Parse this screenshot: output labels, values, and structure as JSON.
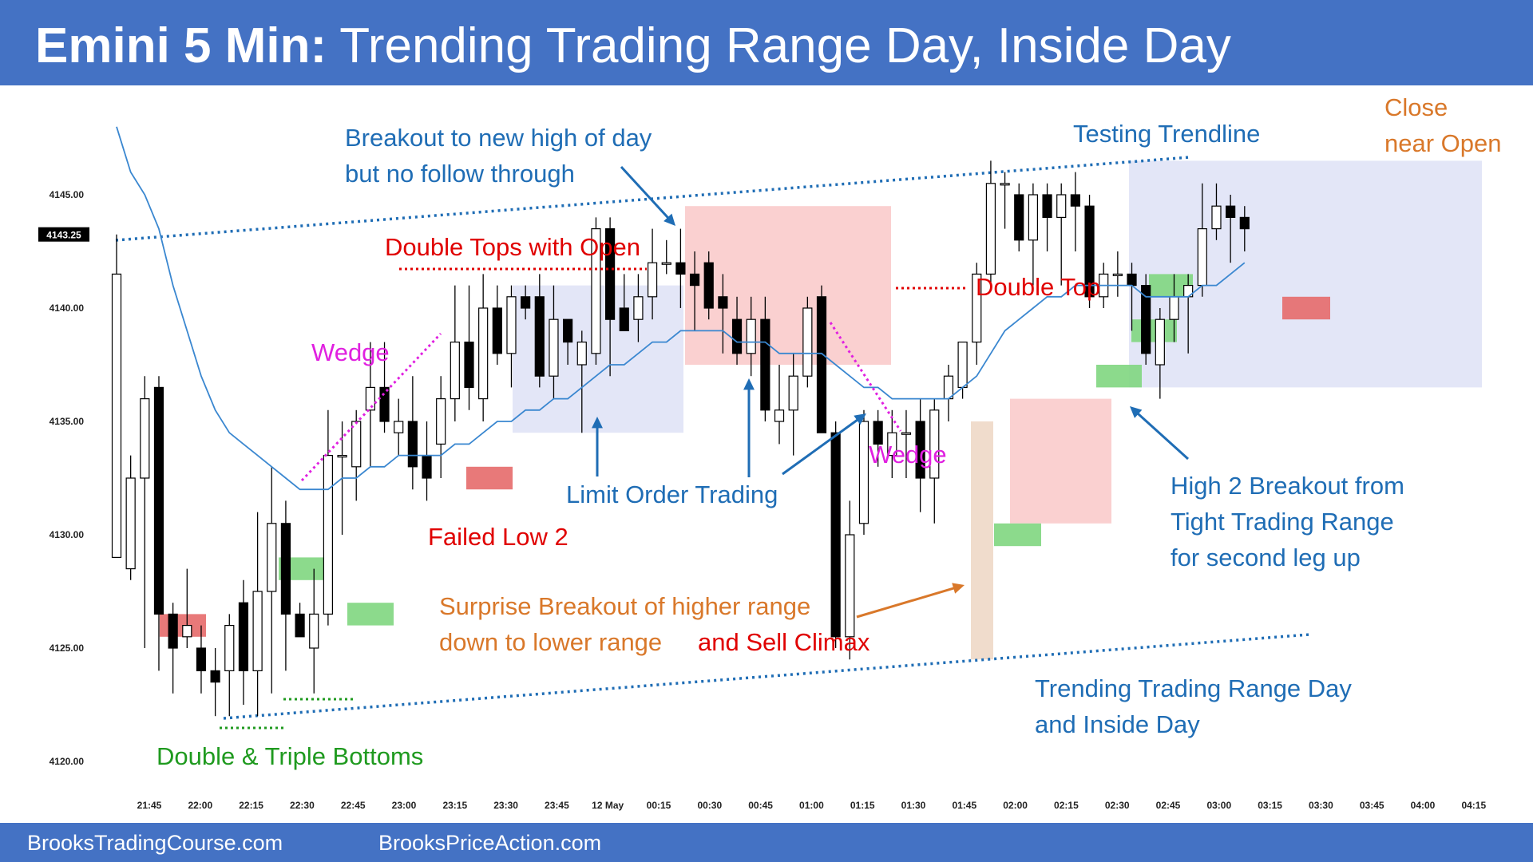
{
  "header": {
    "title_bold": "Emini 5 Min:",
    "title_rest": "Trending Trading Range Day, Inside Day"
  },
  "footer": {
    "left": "BrooksTradingCourse.com",
    "right": "BrooksPriceAction.com"
  },
  "colors": {
    "header_bg": "#4472c4",
    "bull_bar": "#ffffff",
    "bear_bar": "#000000",
    "ema": "#3a87d0",
    "blue_text": "#1f6db5",
    "red_text": "#e00000",
    "magenta": "#e020e0",
    "green_text": "#1f9a1f",
    "orange_text": "#d9782a",
    "range_blue": "#e3e6f7",
    "range_red": "#f9c8c8",
    "green_box": "#7fd67f",
    "red_box": "#e56a6a"
  },
  "chart_data": {
    "type": "candlestick",
    "title": "",
    "xlabel": "",
    "ylabel": "",
    "ylim": [
      4118.0,
      4149.0
    ],
    "y_ticks": [
      "4145.00",
      "4140.00",
      "4135.00",
      "4130.00",
      "4125.00",
      "4120.00"
    ],
    "y_tick_values": [
      4145,
      4140,
      4135,
      4130,
      4125,
      4120
    ],
    "x_tick_labels": [
      "21:45",
      "22:00",
      "22:15",
      "22:30",
      "22:45",
      "23:00",
      "23:15",
      "23:30",
      "23:45",
      "12 May",
      "00:15",
      "00:30",
      "00:45",
      "01:00",
      "01:15",
      "01:30",
      "01:45",
      "02:00",
      "02:15",
      "02:30",
      "02:45",
      "03:00",
      "03:15",
      "03:30",
      "03:45",
      "04:00",
      "04:15"
    ],
    "current_price_label": "4143.25",
    "candles": [
      {
        "o": 4129.0,
        "h": 4143.25,
        "l": 4129.0,
        "c": 4141.5
      },
      {
        "o": 4128.5,
        "h": 4133.5,
        "l": 4128.0,
        "c": 4132.5
      },
      {
        "o": 4132.5,
        "h": 4137.0,
        "l": 4125.0,
        "c": 4136.0
      },
      {
        "o": 4136.5,
        "h": 4137.0,
        "l": 4124.0,
        "c": 4126.5
      },
      {
        "o": 4126.5,
        "h": 4127.0,
        "l": 4123.0,
        "c": 4125.0
      },
      {
        "o": 4125.5,
        "h": 4128.5,
        "l": 4125.0,
        "c": 4126.0
      },
      {
        "o": 4125.0,
        "h": 4126.0,
        "l": 4123.0,
        "c": 4124.0
      },
      {
        "o": 4124.0,
        "h": 4125.0,
        "l": 4122.0,
        "c": 4123.5
      },
      {
        "o": 4124.0,
        "h": 4126.5,
        "l": 4122.0,
        "c": 4126.0
      },
      {
        "o": 4127.0,
        "h": 4128.0,
        "l": 4122.5,
        "c": 4124.0
      },
      {
        "o": 4124.0,
        "h": 4131.0,
        "l": 4122.0,
        "c": 4127.5
      },
      {
        "o": 4127.5,
        "h": 4133.0,
        "l": 4123.0,
        "c": 4130.5
      },
      {
        "o": 4130.5,
        "h": 4131.5,
        "l": 4124.0,
        "c": 4126.5
      },
      {
        "o": 4126.5,
        "h": 4127.0,
        "l": 4125.5,
        "c": 4125.5
      },
      {
        "o": 4125.0,
        "h": 4128.5,
        "l": 4123.0,
        "c": 4126.5
      },
      {
        "o": 4126.5,
        "h": 4135.5,
        "l": 4126.0,
        "c": 4133.5
      },
      {
        "o": 4133.5,
        "h": 4135.0,
        "l": 4130.0,
        "c": 4133.5
      },
      {
        "o": 4133.0,
        "h": 4135.5,
        "l": 4131.5,
        "c": 4135.0
      },
      {
        "o": 4135.5,
        "h": 4138.5,
        "l": 4133.0,
        "c": 4136.5
      },
      {
        "o": 4136.5,
        "h": 4138.5,
        "l": 4134.5,
        "c": 4135.0
      },
      {
        "o": 4134.5,
        "h": 4136.0,
        "l": 4133.5,
        "c": 4135.0
      },
      {
        "o": 4135.0,
        "h": 4137.0,
        "l": 4132.0,
        "c": 4133.0
      },
      {
        "o": 4133.5,
        "h": 4135.0,
        "l": 4131.5,
        "c": 4132.5
      },
      {
        "o": 4134.0,
        "h": 4137.0,
        "l": 4132.5,
        "c": 4136.0
      },
      {
        "o": 4136.0,
        "h": 4141.0,
        "l": 4135.0,
        "c": 4138.5
      },
      {
        "o": 4138.5,
        "h": 4141.0,
        "l": 4135.5,
        "c": 4136.5
      },
      {
        "o": 4136.0,
        "h": 4141.5,
        "l": 4135.0,
        "c": 4140.0
      },
      {
        "o": 4140.0,
        "h": 4141.0,
        "l": 4137.5,
        "c": 4138.0
      },
      {
        "o": 4138.0,
        "h": 4141.0,
        "l": 4136.5,
        "c": 4140.5
      },
      {
        "o": 4140.5,
        "h": 4141.0,
        "l": 4139.5,
        "c": 4140.0
      },
      {
        "o": 4140.5,
        "h": 4141.5,
        "l": 4136.5,
        "c": 4137.0
      },
      {
        "o": 4137.0,
        "h": 4141.0,
        "l": 4136.0,
        "c": 4139.5
      },
      {
        "o": 4139.5,
        "h": 4139.5,
        "l": 4137.5,
        "c": 4138.5
      },
      {
        "o": 4137.5,
        "h": 4139.0,
        "l": 4134.5,
        "c": 4138.5
      },
      {
        "o": 4138.0,
        "h": 4144.0,
        "l": 4137.5,
        "c": 4143.5
      },
      {
        "o": 4143.5,
        "h": 4144.0,
        "l": 4137.0,
        "c": 4139.5
      },
      {
        "o": 4140.0,
        "h": 4141.5,
        "l": 4139.0,
        "c": 4139.0
      },
      {
        "o": 4139.5,
        "h": 4141.5,
        "l": 4138.5,
        "c": 4140.5
      },
      {
        "o": 4140.5,
        "h": 4143.5,
        "l": 4139.5,
        "c": 4142.0
      },
      {
        "o": 4142.0,
        "h": 4143.0,
        "l": 4141.5,
        "c": 4142.0
      },
      {
        "o": 4142.0,
        "h": 4143.5,
        "l": 4140.0,
        "c": 4141.5
      },
      {
        "o": 4141.5,
        "h": 4142.5,
        "l": 4139.0,
        "c": 4141.0
      },
      {
        "o": 4142.0,
        "h": 4142.5,
        "l": 4139.5,
        "c": 4140.0
      },
      {
        "o": 4140.5,
        "h": 4141.5,
        "l": 4138.0,
        "c": 4140.0
      },
      {
        "o": 4139.5,
        "h": 4140.5,
        "l": 4137.5,
        "c": 4138.0
      },
      {
        "o": 4138.0,
        "h": 4140.5,
        "l": 4137.0,
        "c": 4139.5
      },
      {
        "o": 4139.5,
        "h": 4140.5,
        "l": 4135.0,
        "c": 4135.5
      },
      {
        "o": 4135.0,
        "h": 4137.5,
        "l": 4134.0,
        "c": 4135.5
      },
      {
        "o": 4135.5,
        "h": 4138.0,
        "l": 4133.5,
        "c": 4137.0
      },
      {
        "o": 4137.0,
        "h": 4140.5,
        "l": 4136.5,
        "c": 4140.0
      },
      {
        "o": 4140.5,
        "h": 4141.0,
        "l": 4134.5,
        "c": 4134.5
      },
      {
        "o": 4134.5,
        "h": 4135.0,
        "l": 4125.0,
        "c": 4125.5
      },
      {
        "o": 4125.5,
        "h": 4131.5,
        "l": 4124.5,
        "c": 4130.0
      },
      {
        "o": 4130.5,
        "h": 4135.5,
        "l": 4130.0,
        "c": 4135.0
      },
      {
        "o": 4135.0,
        "h": 4135.5,
        "l": 4133.0,
        "c": 4134.0
      },
      {
        "o": 4133.5,
        "h": 4135.5,
        "l": 4132.5,
        "c": 4134.5
      },
      {
        "o": 4134.5,
        "h": 4135.5,
        "l": 4132.5,
        "c": 4134.5
      },
      {
        "o": 4135.0,
        "h": 4136.0,
        "l": 4131.0,
        "c": 4132.5
      },
      {
        "o": 4132.5,
        "h": 4136.0,
        "l": 4130.5,
        "c": 4135.5
      },
      {
        "o": 4136.0,
        "h": 4137.5,
        "l": 4135.0,
        "c": 4137.0
      },
      {
        "o": 4136.5,
        "h": 4138.5,
        "l": 4136.0,
        "c": 4138.5
      },
      {
        "o": 4138.5,
        "h": 4142.0,
        "l": 4137.5,
        "c": 4141.5
      },
      {
        "o": 4141.5,
        "h": 4146.5,
        "l": 4141.0,
        "c": 4145.5
      },
      {
        "o": 4145.5,
        "h": 4146.0,
        "l": 4143.5,
        "c": 4145.5
      },
      {
        "o": 4145.0,
        "h": 4145.5,
        "l": 4142.5,
        "c": 4143.0
      },
      {
        "o": 4143.0,
        "h": 4145.5,
        "l": 4141.0,
        "c": 4145.0
      },
      {
        "o": 4145.0,
        "h": 4145.5,
        "l": 4142.5,
        "c": 4144.0
      },
      {
        "o": 4144.0,
        "h": 4145.5,
        "l": 4141.0,
        "c": 4145.0
      },
      {
        "o": 4145.0,
        "h": 4146.0,
        "l": 4142.5,
        "c": 4144.5
      },
      {
        "o": 4144.5,
        "h": 4145.0,
        "l": 4140.0,
        "c": 4140.5
      },
      {
        "o": 4140.5,
        "h": 4142.0,
        "l": 4140.0,
        "c": 4141.5
      },
      {
        "o": 4141.5,
        "h": 4142.5,
        "l": 4140.5,
        "c": 4141.5
      },
      {
        "o": 4141.5,
        "h": 4142.0,
        "l": 4139.0,
        "c": 4141.0
      },
      {
        "o": 4141.0,
        "h": 4141.5,
        "l": 4137.5,
        "c": 4138.0
      },
      {
        "o": 4137.5,
        "h": 4140.0,
        "l": 4136.0,
        "c": 4139.5
      },
      {
        "o": 4139.5,
        "h": 4141.5,
        "l": 4138.5,
        "c": 4140.5
      },
      {
        "o": 4140.5,
        "h": 4141.5,
        "l": 4138.0,
        "c": 4141.0
      },
      {
        "o": 4141.0,
        "h": 4145.5,
        "l": 4140.5,
        "c": 4143.5
      },
      {
        "o": 4143.5,
        "h": 4145.5,
        "l": 4143.0,
        "c": 4144.5
      },
      {
        "o": 4144.5,
        "h": 4145.0,
        "l": 4142.0,
        "c": 4144.0
      },
      {
        "o": 4144.0,
        "h": 4144.5,
        "l": 4142.5,
        "c": 4143.5
      }
    ],
    "ema": [
      4148.0,
      4146.0,
      4145.0,
      4143.5,
      4141.0,
      4139.0,
      4137.0,
      4135.5,
      4134.5,
      4134.0,
      4133.5,
      4133.0,
      4132.5,
      4132.0,
      4132.0,
      4132.0,
      4132.5,
      4132.5,
      4133.0,
      4133.0,
      4133.5,
      4133.5,
      4133.5,
      4133.5,
      4134.0,
      4134.0,
      4134.5,
      4135.0,
      4135.0,
      4135.5,
      4135.5,
      4136.0,
      4136.0,
      4136.5,
      4137.0,
      4137.5,
      4137.5,
      4138.0,
      4138.5,
      4138.5,
      4139.0,
      4139.0,
      4139.0,
      4139.0,
      4138.5,
      4138.5,
      4138.5,
      4138.0,
      4138.0,
      4138.0,
      4138.0,
      4137.5,
      4137.0,
      4136.5,
      4136.5,
      4136.0,
      4136.0,
      4136.0,
      4136.0,
      4136.0,
      4136.5,
      4137.0,
      4138.0,
      4139.0,
      4139.5,
      4140.0,
      4140.5,
      4140.5,
      4141.0,
      4141.0,
      4141.0,
      4141.0,
      4141.0,
      4140.5,
      4140.5,
      4140.5,
      4140.5,
      4141.0,
      4141.0,
      4141.5,
      4142.0
    ],
    "annotations": {
      "breakout": [
        "Breakout to new high of day",
        "but no follow through"
      ],
      "testing_trendline": "Testing Trendline",
      "close_near_open": [
        "Close",
        "near Open"
      ],
      "double_tops_open": "Double Tops with Open",
      "double_top": "Double Top",
      "wedge_1": "Wedge",
      "wedge_2": "Wedge",
      "failed_low_2": "Failed Low 2",
      "limit_order_trading": "Limit Order Trading",
      "high2": [
        "High 2 Breakout from",
        "Tight Trading Range",
        "for second leg up"
      ],
      "surprise_orange": [
        "Surprise Breakout of higher range",
        "down to lower range"
      ],
      "surprise_red": "and Sell Climax",
      "trending_range": [
        "Trending Trading Range Day",
        "and Inside Day"
      ],
      "double_triple": "Double & Triple Bottoms"
    }
  }
}
